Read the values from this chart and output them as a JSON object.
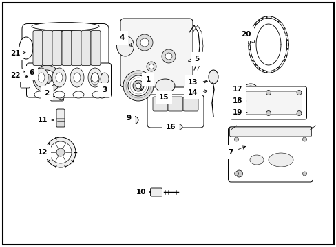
{
  "background_color": "#ffffff",
  "border_color": "#000000",
  "fig_width": 4.89,
  "fig_height": 3.6,
  "dpi": 100,
  "label_fs": 7.5,
  "lw": 0.7,
  "parts_lw": 0.8
}
